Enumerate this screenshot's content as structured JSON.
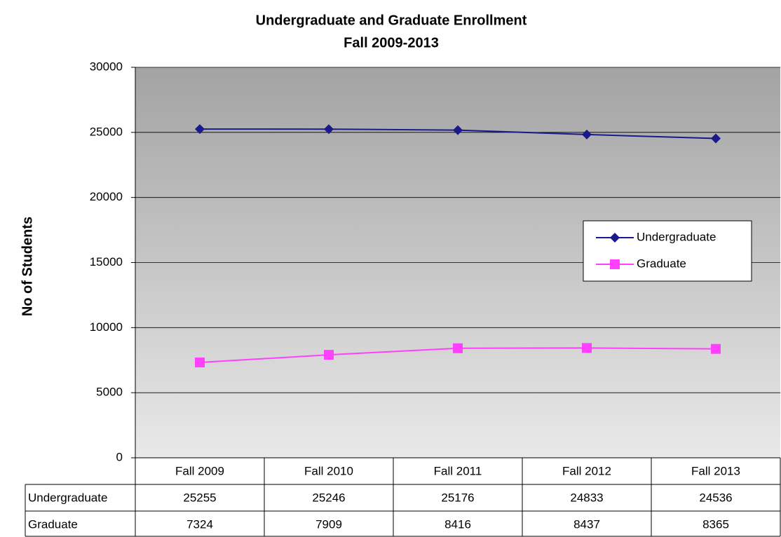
{
  "chart_data": {
    "type": "line",
    "title": "Undergraduate and Graduate Enrollment",
    "subtitle": "Fall 2009-2013",
    "y_label": "No of Students",
    "categories": [
      "Fall 2009",
      "Fall 2010",
      "Fall 2011",
      "Fall 2012",
      "Fall 2013"
    ],
    "series": [
      {
        "name": "Undergraduate",
        "color": "#1a1a8c",
        "marker": "diamond",
        "values": [
          25255,
          25246,
          25176,
          24833,
          24536
        ]
      },
      {
        "name": "Graduate",
        "color": "#ff40ff",
        "marker": "square",
        "values": [
          7324,
          7909,
          8416,
          8437,
          8365
        ]
      }
    ],
    "ylim": [
      0,
      30000
    ],
    "yticks": [
      0,
      5000,
      10000,
      15000,
      20000,
      25000,
      30000
    ],
    "grid": true,
    "legend": "right",
    "data_table": true
  }
}
